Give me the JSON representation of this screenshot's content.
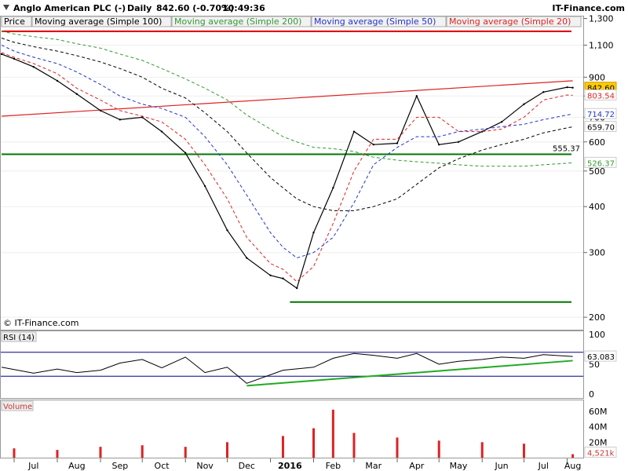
{
  "header": {
    "name": "Anglo American PLC (-)",
    "period": "Daily",
    "price": "842.60 (-0.70%)",
    "time": "10:49:36",
    "brand": "IT-Finance.com"
  },
  "legend": [
    {
      "label": "Price",
      "color": "#000000"
    },
    {
      "label": "Moving average (Simple 100)",
      "color": "#000000"
    },
    {
      "label": "Moving average (Simple 200)",
      "color": "#339933"
    },
    {
      "label": "Moving average (Simple 50)",
      "color": "#2233cc"
    },
    {
      "label": "Moving average (Simple 20)",
      "color": "#dd2222"
    }
  ],
  "copyright": "© IT-Finance.com",
  "colors": {
    "price": "#000000",
    "sma20": "#dd2222",
    "sma50": "#2233cc",
    "sma100": "#000000",
    "sma200": "#339933",
    "support": "#007700",
    "resistance": "#dd0000",
    "volume": "#dd2222",
    "rsi_band": "#000088"
  },
  "chart_data": [
    {
      "type": "line",
      "title": "Anglo American PLC (-) Daily",
      "scale": "log",
      "ylim": [
        185,
        1310
      ],
      "x_ticks": [
        "Jul",
        "Aug",
        "Sep",
        "Oct",
        "Nov",
        "Dec",
        "2016",
        "Feb",
        "Mar",
        "Apr",
        "May",
        "Jun",
        "Jul",
        "Aug"
      ],
      "y_ticks": [
        "1,300",
        "1,100",
        "900",
        "800",
        "700",
        "600",
        "500",
        "400",
        "300",
        "200"
      ],
      "value_labels": [
        {
          "text": "842.60",
          "series": "Price",
          "color": "#ffcc00"
        },
        {
          "text": "803.54",
          "series": "Moving average (Simple 20)",
          "color": "#dd2222"
        },
        {
          "text": "714.72",
          "series": "Moving average (Simple 50)",
          "color": "#2233cc"
        },
        {
          "text": "659.70",
          "series": "Moving average (Simple 100)",
          "color": "#000000"
        },
        {
          "text": "526.37",
          "series": "Moving average (Simple 200)",
          "color": "#339933"
        }
      ],
      "annotations": [
        {
          "text": "555.37",
          "value": 555.37
        }
      ],
      "horizontal_lines": [
        {
          "value": 1200,
          "color": "#dd0000",
          "label": "resistance"
        },
        {
          "value": 555.37,
          "color": "#007700",
          "label": "support"
        },
        {
          "value": 220,
          "color": "#007700",
          "label": "low"
        }
      ],
      "trendline": {
        "from": {
          "x": "2015-06-22",
          "y": 705
        },
        "to": {
          "x": "2016-08-05",
          "y": 880
        },
        "color": "#dd2222"
      },
      "x": [
        "2015-06-22",
        "2015-07-01",
        "2015-07-15",
        "2015-08-01",
        "2015-08-15",
        "2015-09-01",
        "2015-09-15",
        "2015-10-01",
        "2015-10-15",
        "2015-11-01",
        "2015-11-15",
        "2015-12-01",
        "2015-12-15",
        "2016-01-01",
        "2016-01-10",
        "2016-01-20",
        "2016-02-01",
        "2016-02-15",
        "2016-03-01",
        "2016-03-15",
        "2016-04-01",
        "2016-04-15",
        "2016-05-01",
        "2016-05-15",
        "2016-06-01",
        "2016-06-15",
        "2016-07-01",
        "2016-07-15",
        "2016-08-01",
        "2016-08-05"
      ],
      "series": [
        {
          "name": "Price",
          "values": [
            1040,
            1010,
            960,
            880,
            810,
            730,
            690,
            700,
            640,
            560,
            455,
            345,
            290,
            260,
            255,
            240,
            340,
            450,
            640,
            590,
            595,
            800,
            590,
            600,
            640,
            680,
            760,
            820,
            845,
            842.6
          ]
        },
        {
          "name": "Moving average (Simple 20)",
          "values": [
            1050,
            1020,
            980,
            920,
            840,
            780,
            730,
            705,
            680,
            610,
            520,
            420,
            330,
            280,
            270,
            250,
            275,
            360,
            500,
            610,
            610,
            700,
            700,
            640,
            640,
            650,
            700,
            780,
            805,
            803.54
          ]
        },
        {
          "name": "Moving average (Simple 50)",
          "values": [
            1100,
            1060,
            1020,
            980,
            930,
            860,
            800,
            760,
            740,
            700,
            620,
            520,
            430,
            340,
            310,
            290,
            300,
            330,
            410,
            520,
            580,
            620,
            620,
            640,
            650,
            660,
            670,
            690,
            710,
            714.72
          ]
        },
        {
          "name": "Moving average (Simple 100)",
          "values": [
            1150,
            1120,
            1090,
            1060,
            1030,
            990,
            950,
            900,
            840,
            790,
            720,
            640,
            560,
            480,
            450,
            420,
            400,
            390,
            390,
            400,
            420,
            460,
            510,
            540,
            570,
            590,
            610,
            635,
            655,
            659.7
          ]
        },
        {
          "name": "Moving average (Simple 200)",
          "values": [
            1200,
            1180,
            1160,
            1140,
            1110,
            1080,
            1040,
            1000,
            950,
            890,
            840,
            780,
            710,
            650,
            620,
            600,
            580,
            575,
            565,
            545,
            535,
            530,
            525,
            520,
            515,
            515,
            515,
            520,
            525,
            526.37
          ]
        }
      ]
    },
    {
      "type": "line",
      "title": "RSI (14)",
      "ylim": [
        0,
        100
      ],
      "y_ticks": [
        "100",
        "50",
        "0"
      ],
      "bands": [
        30,
        70
      ],
      "last_value": "63.083",
      "trendline": {
        "from": {
          "x": "2015-12-15",
          "y": 14
        },
        "to": {
          "x": "2016-08-05",
          "y": 56
        },
        "color": "#22aa22"
      },
      "x": [
        "2015-06-22",
        "2015-07-15",
        "2015-08-01",
        "2015-08-15",
        "2015-09-01",
        "2015-09-15",
        "2015-10-01",
        "2015-10-15",
        "2015-11-01",
        "2015-11-15",
        "2015-12-01",
        "2015-12-15",
        "2016-01-10",
        "2016-02-01",
        "2016-02-15",
        "2016-03-01",
        "2016-03-15",
        "2016-04-01",
        "2016-04-15",
        "2016-05-01",
        "2016-05-15",
        "2016-06-01",
        "2016-06-15",
        "2016-07-01",
        "2016-07-15",
        "2016-08-05"
      ],
      "series": [
        {
          "name": "RSI (14)",
          "values": [
            45,
            35,
            42,
            36,
            40,
            52,
            58,
            44,
            62,
            36,
            45,
            18,
            40,
            45,
            60,
            68,
            65,
            60,
            68,
            50,
            55,
            58,
            62,
            60,
            66,
            63.083
          ]
        }
      ]
    },
    {
      "type": "bar",
      "title": "Volume",
      "y_ticks": [
        "60M",
        "40M",
        "20M"
      ],
      "last_value": "4,521k",
      "x": [
        "2015-07-01",
        "2015-08-01",
        "2015-09-01",
        "2015-10-01",
        "2015-11-01",
        "2015-12-01",
        "2016-01-10",
        "2016-02-01",
        "2016-02-15",
        "2016-03-01",
        "2016-04-01",
        "2016-05-01",
        "2016-06-01",
        "2016-07-01",
        "2016-08-05"
      ],
      "values": [
        12,
        10,
        14,
        16,
        14,
        20,
        28,
        38,
        62,
        32,
        26,
        22,
        20,
        18,
        4.5
      ]
    }
  ]
}
